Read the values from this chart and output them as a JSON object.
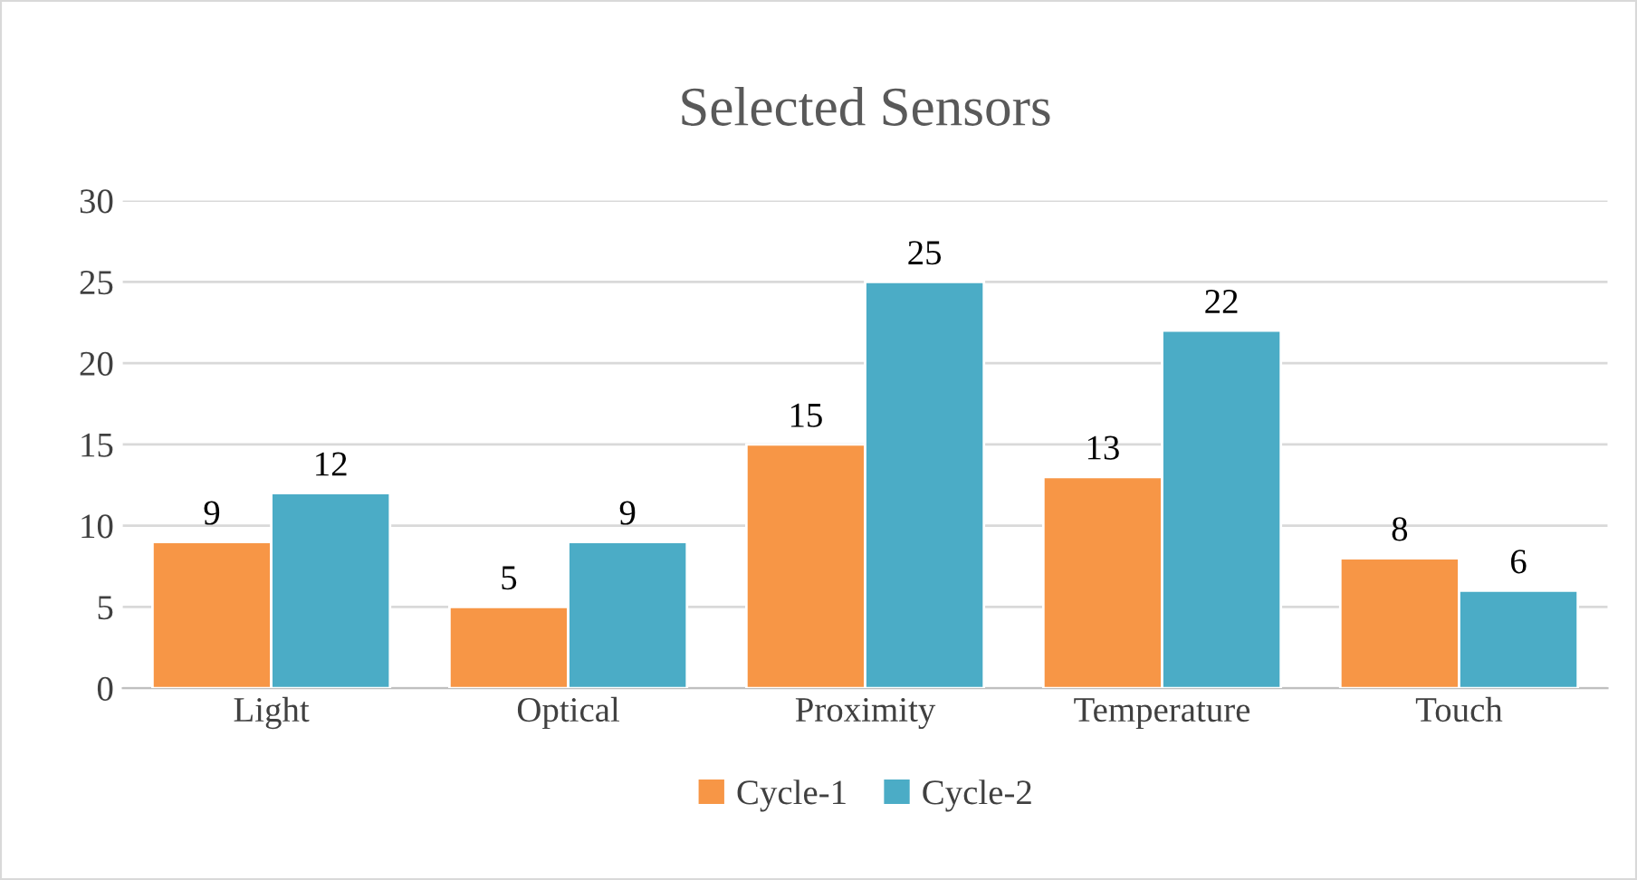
{
  "chart_data": {
    "type": "bar",
    "title": "Selected Sensors",
    "categories": [
      "Light",
      "Optical",
      "Proximity",
      "Temperature",
      "Touch"
    ],
    "series": [
      {
        "name": "Cycle-1",
        "color": "#f79646",
        "values": [
          9,
          5,
          15,
          13,
          8
        ]
      },
      {
        "name": "Cycle-2",
        "color": "#4bacc6",
        "values": [
          12,
          9,
          25,
          22,
          6
        ]
      }
    ],
    "ylim": [
      0,
      30
    ],
    "yticks": [
      0,
      5,
      10,
      15,
      20,
      25,
      30
    ],
    "grid": "y",
    "legend": "bottom",
    "data_labels": true
  }
}
